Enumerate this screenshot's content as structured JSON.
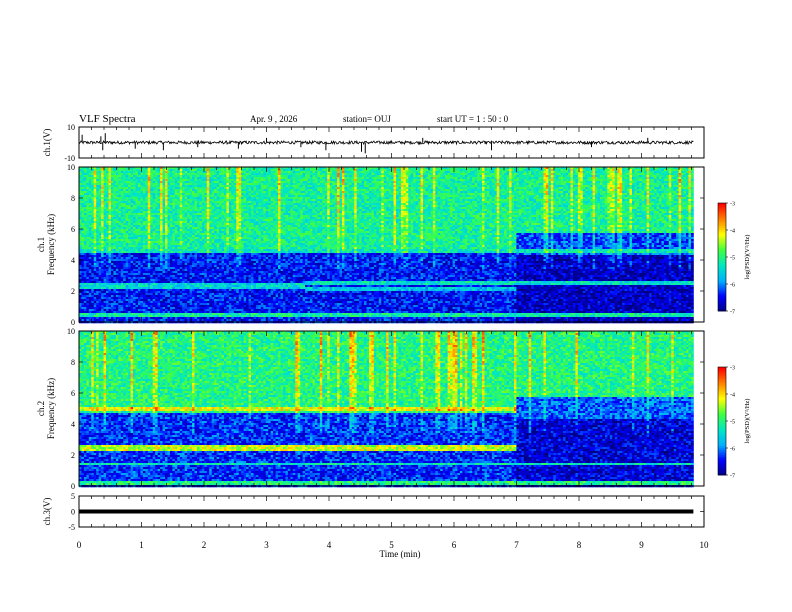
{
  "header": {
    "title": "VLF Spectra",
    "date": "Apr. 9 , 2026",
    "station": "station= OUJ",
    "start": "start UT = 1 : 50 : 0"
  },
  "chart_data": [
    {
      "type": "line",
      "panel": "ch1-waveform",
      "ylabel": "ch.1(V)",
      "ylim": [
        -10,
        10
      ],
      "yticks": [
        10,
        -10
      ],
      "x_range_min": [
        0,
        9.83
      ],
      "baseline_v": 0,
      "noise_v": 1,
      "spikes": [
        {
          "t": 0.05,
          "v": 5
        },
        {
          "t": 0.35,
          "v": 4
        },
        {
          "t": 0.38,
          "v": -5
        },
        {
          "t": 0.42,
          "v": 6
        },
        {
          "t": 0.9,
          "v": -4
        },
        {
          "t": 1.35,
          "v": -5
        },
        {
          "t": 1.9,
          "v": -3
        },
        {
          "t": 2.55,
          "v": -4
        },
        {
          "t": 3.0,
          "v": 3
        },
        {
          "t": 3.55,
          "v": -3
        },
        {
          "t": 3.95,
          "v": -5
        },
        {
          "t": 4.52,
          "v": -6
        },
        {
          "t": 4.58,
          "v": -7
        },
        {
          "t": 5.5,
          "v": 3
        },
        {
          "t": 6.6,
          "v": -5
        },
        {
          "t": 8.2,
          "v": -3
        },
        {
          "t": 9.1,
          "v": 3
        }
      ]
    },
    {
      "type": "heatmap",
      "panel": "ch1-spectrogram",
      "ylabel": "ch.1 Frequency (kHz)",
      "x_range_min": [
        0,
        9.83
      ],
      "ylim": [
        0,
        10
      ],
      "yticks": [
        0,
        2,
        4,
        6,
        8,
        10
      ],
      "background_logpsd": -5.1,
      "low_band": {
        "f": [
          0,
          4.8
        ],
        "logpsd": -6.4
      },
      "bands": [
        {
          "f": 2.35,
          "width": 0.3,
          "t": [
            0,
            3.6
          ],
          "logpsd": -5.5
        },
        {
          "f": 2.15,
          "width": 0.25,
          "t": [
            3.6,
            7.0
          ],
          "logpsd": -5.6
        },
        {
          "f": 2.6,
          "width": 0.3,
          "t": [
            3.6,
            9.83
          ],
          "logpsd": -5.4
        },
        {
          "f": 4.6,
          "width": 0.25,
          "t": [
            0,
            9.83
          ],
          "logpsd": -5.3
        },
        {
          "f": 0.5,
          "width": 0.2,
          "t": [
            0,
            9.83
          ],
          "logpsd": -5.2
        }
      ],
      "quiet_after_min": 7.0,
      "colorbar": {
        "label": "log(PSD)(V²/Hz)",
        "range": [
          -7,
          -3
        ],
        "ticks": [
          -3,
          -4,
          -5,
          -6,
          -7
        ]
      }
    },
    {
      "type": "heatmap",
      "panel": "ch2-spectrogram",
      "ylabel": "ch.2 Frequency (kHz)",
      "x_range_min": [
        0,
        9.83
      ],
      "ylim": [
        0,
        10
      ],
      "yticks": [
        0,
        2,
        4,
        6,
        8,
        10
      ],
      "background_logpsd": -5.0,
      "low_band": {
        "f": [
          0,
          4.8
        ],
        "logpsd": -6.3
      },
      "bands": [
        {
          "f": 5.0,
          "width": 0.3,
          "t": [
            0,
            7.0
          ],
          "logpsd": -4.2
        },
        {
          "f": 2.5,
          "width": 0.3,
          "t": [
            0,
            7.0
          ],
          "logpsd": -4.3
        },
        {
          "f": 1.5,
          "width": 0.2,
          "t": [
            0,
            9.83
          ],
          "logpsd": -5.3
        },
        {
          "f": 0.3,
          "width": 0.25,
          "t": [
            0,
            9.83
          ],
          "logpsd": -5.0
        }
      ],
      "quiet_after_min": 7.0,
      "colorbar": {
        "label": "log(PSD)(V²/Hz)",
        "range": [
          -7,
          -3
        ],
        "ticks": [
          -3,
          -4,
          -5,
          -6,
          -7
        ]
      }
    },
    {
      "type": "line",
      "panel": "ch3-waveform",
      "ylabel": "ch.3(V)",
      "ylim": [
        -5,
        5
      ],
      "yticks": [
        5,
        0,
        -5
      ],
      "x_range_min": [
        0,
        9.83
      ],
      "level_v": 0
    }
  ],
  "xaxis": {
    "label": "Time (min)",
    "ticks": [
      "0",
      "1",
      "2",
      "3",
      "4",
      "5",
      "6",
      "7",
      "8",
      "9",
      "10"
    ],
    "range": [
      0,
      10
    ]
  },
  "colors": {
    "colormap": [
      "#000080",
      "#0000ff",
      "#00b0ff",
      "#00e8c0",
      "#40ff40",
      "#ffff00",
      "#ff8000",
      "#ff0000",
      "#ffffff"
    ]
  }
}
